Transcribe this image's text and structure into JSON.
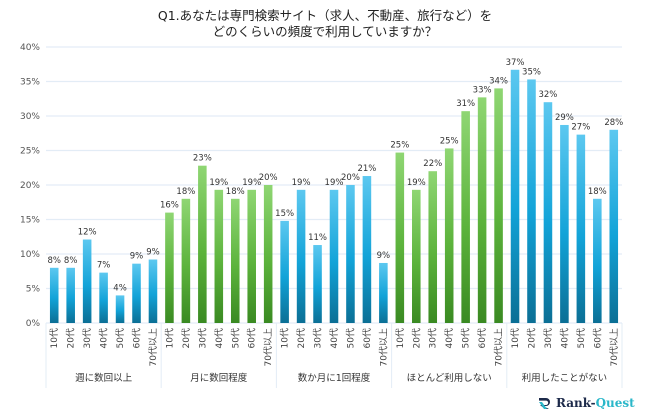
{
  "chart_data": {
    "type": "bar",
    "title": "Q1.あなたは専門検索サイト（求人、不動産、旅行など）を どのくらいの頻度で利用していますか？",
    "title_lines": [
      "Q1.あなたは専門検索サイト（求人、不動産、旅行など）を",
      "どのくらいの頻度で利用していますか？"
    ],
    "xlabel": "",
    "ylabel": "",
    "ylim": [
      0,
      40
    ],
    "yticks": [
      0,
      5,
      10,
      15,
      20,
      25,
      30,
      35,
      40
    ],
    "ytick_labels": [
      "0%",
      "5%",
      "10%",
      "15%",
      "20%",
      "25%",
      "30%",
      "35%",
      "40%"
    ],
    "grid": true,
    "legend": "none",
    "value_suffix": "%",
    "categories": [
      "10代",
      "20代",
      "30代",
      "40代",
      "50代",
      "60代",
      "70代以上"
    ],
    "groups": [
      {
        "name": "週に数回以上",
        "color": "blue",
        "values": [
          8,
          8,
          12,
          7,
          4,
          9,
          9
        ]
      },
      {
        "name": "月に数回程度",
        "color": "green",
        "values": [
          16,
          18,
          23,
          19,
          18,
          19,
          20
        ]
      },
      {
        "name": "数か月に1回程度",
        "color": "blue",
        "values": [
          15,
          19,
          11,
          19,
          20,
          21,
          9
        ]
      },
      {
        "name": "ほとんど利用しない",
        "color": "green",
        "values": [
          25,
          19,
          22,
          25,
          31,
          33,
          34
        ]
      },
      {
        "name": "利用したことがない",
        "color": "blue",
        "values": [
          37,
          35,
          32,
          29,
          27,
          18,
          28
        ]
      }
    ],
    "bar_value_precise": [
      [
        8.0,
        8.0,
        12.1,
        7.3,
        4.0,
        8.6,
        9.2
      ],
      [
        16.0,
        18.0,
        22.8,
        19.3,
        18.0,
        19.3,
        20.0
      ],
      [
        14.8,
        19.3,
        11.3,
        19.3,
        20.0,
        21.3,
        8.7
      ],
      [
        24.7,
        19.3,
        22.0,
        25.3,
        30.7,
        32.7,
        34.0
      ],
      [
        36.7,
        35.3,
        32.0,
        28.7,
        27.3,
        18.0,
        28.0
      ]
    ]
  },
  "colors": {
    "blue_top": "#5cc8f0",
    "blue_mid": "#12a3d8",
    "blue_bottom": "#0b6f95",
    "green_top": "#8fd673",
    "green_mid": "#5cb33c",
    "green_bottom": "#3a8a22",
    "grid": "#e3ecf6"
  },
  "logo": {
    "text_main": "Rank-",
    "text_accent": "Quest",
    "icon": "rank-quest-logo-icon"
  }
}
